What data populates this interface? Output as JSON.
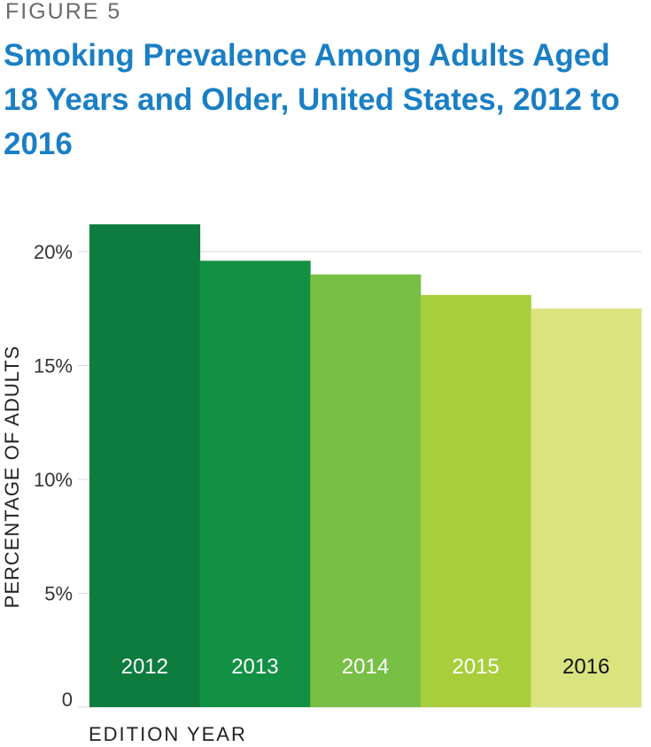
{
  "figure_label": "FIGURE 5",
  "chart_data": {
    "type": "bar",
    "title": "Smoking Prevalence Among Adults Aged 18 Years and Older, United States, 2012 to 2016",
    "xlabel": "EDITION YEAR",
    "ylabel": "PERCENTAGE OF ADULTS",
    "categories": [
      "2012",
      "2013",
      "2014",
      "2015",
      "2016"
    ],
    "values": [
      21.2,
      19.6,
      19.0,
      18.1,
      17.5
    ],
    "ylim": [
      0,
      21.2
    ],
    "yticks": [
      0,
      5,
      10,
      15,
      20
    ],
    "ytick_labels": [
      "0",
      "5%",
      "10%",
      "15%",
      "20%"
    ],
    "grid": true,
    "colors": [
      "#0e7c3f",
      "#129144",
      "#77bf45",
      "#a8ce3b",
      "#d9e47f"
    ],
    "label_colors": [
      "#ffffff",
      "#ffffff",
      "#ffffff",
      "#ffffff",
      "#111111"
    ],
    "gridline_color": "#d9d9d9"
  }
}
